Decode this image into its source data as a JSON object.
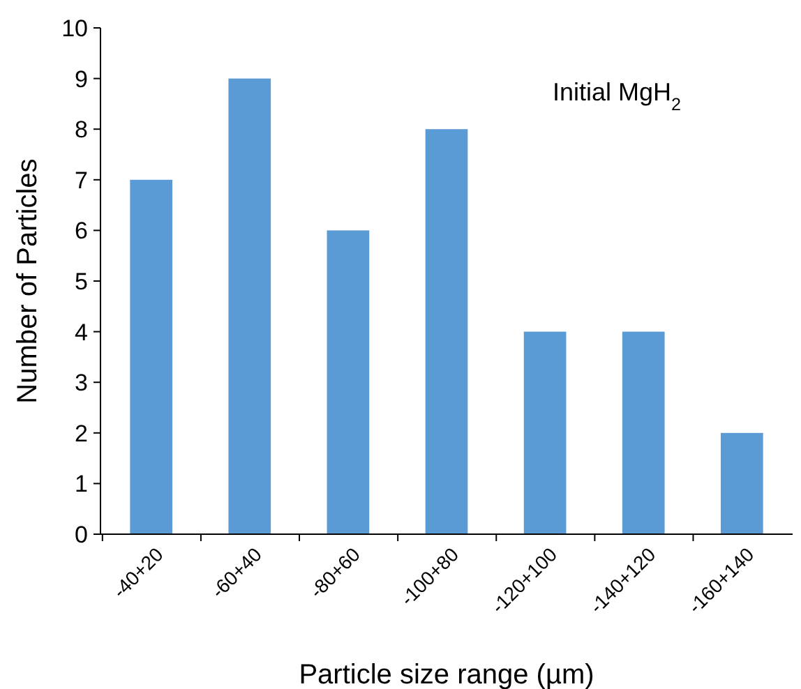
{
  "chart_data": {
    "type": "bar",
    "categories": [
      "-40+20",
      "-60+40",
      "-80+60",
      "-100+80",
      "-120+100",
      "-140+120",
      "-160+140"
    ],
    "values": [
      7,
      9,
      6,
      8,
      4,
      4,
      2
    ],
    "color": "#5b9bd5",
    "ylim": [
      0,
      10
    ],
    "yticks": [
      0,
      1,
      2,
      3,
      4,
      5,
      6,
      7,
      8,
      9,
      10
    ],
    "grid": false,
    "xlabel": "Particle size range (µm)",
    "ylabel": "Number of Particles",
    "annotations": [
      "Initial MgH$_{2}$"
    ]
  }
}
